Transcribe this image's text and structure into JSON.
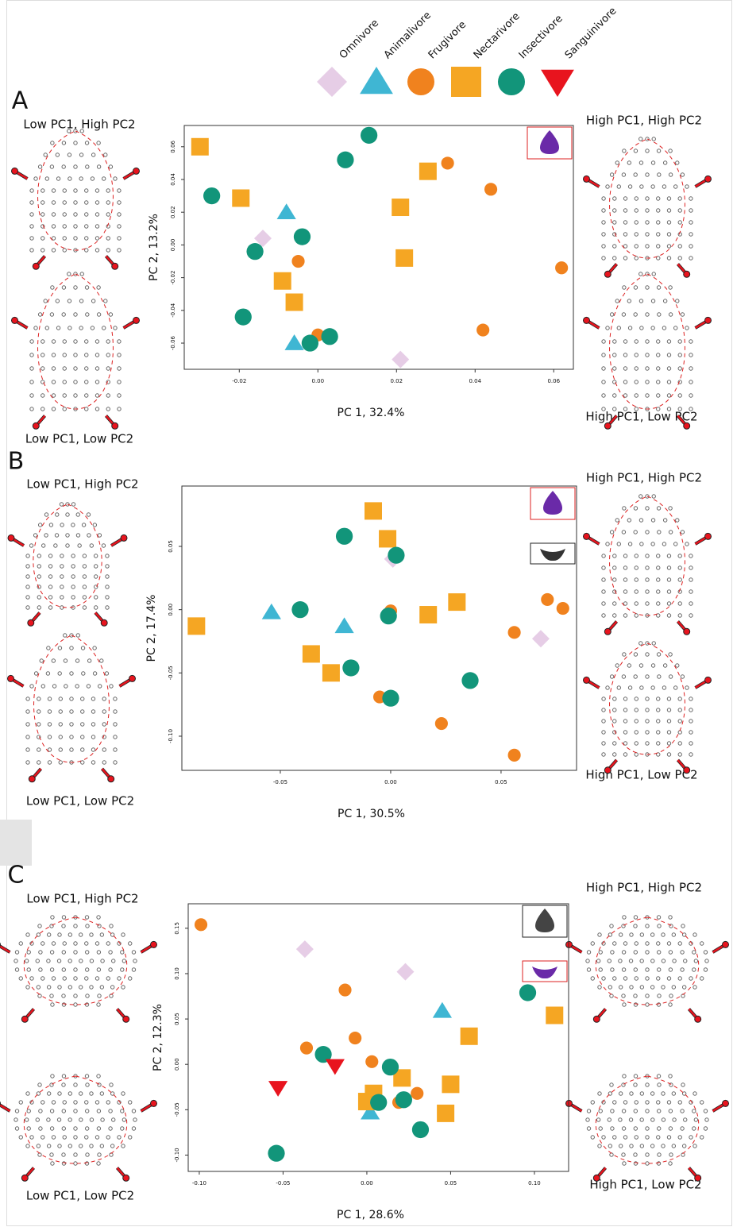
{
  "chart_data": [
    {
      "type": "scatter",
      "panel": "A",
      "xlabel": "PC 1, 32.4%",
      "ylabel": "PC 2, 13.2%",
      "annotations": [
        "Low PC1, High PC2",
        "Low PC1, Low PC2",
        "High PC1, High PC2",
        "High PC1, Low PC2"
      ],
      "xlim": [
        -0.034,
        0.065
      ],
      "ylim": [
        -0.076,
        0.073
      ],
      "xticks": [
        -0.02,
        {
          "value": 0,
          "label": "0.00"
        },
        0.02,
        0.04,
        0.06
      ],
      "yticks": [
        -0.06,
        -0.04,
        -0.02,
        {
          "value": 0,
          "label": "0.00"
        },
        0.02,
        0.04,
        0.06
      ],
      "series": [
        {
          "name": "Omnivore",
          "color": "#e6cde6",
          "marker": "diamond",
          "x": [
            -0.014,
            0.021
          ],
          "values": [
            0.004,
            -0.07
          ]
        },
        {
          "name": "Animalivore",
          "color": "#3fb6d3",
          "marker": "triangle",
          "x": [
            -0.008,
            -0.006
          ],
          "values": [
            0.02,
            -0.06
          ]
        },
        {
          "name": "Frugivore",
          "color": "#f0821e",
          "marker": "circle",
          "x": [
            0.033,
            0.044,
            -0.005,
            0.062,
            0.042,
            0.0
          ],
          "values": [
            0.05,
            0.034,
            -0.01,
            -0.014,
            -0.052,
            -0.055
          ]
        },
        {
          "name": "Nectarivore",
          "color": "#f5a623",
          "marker": "square",
          "x": [
            -0.03,
            -0.0196,
            0.028,
            0.021,
            0.022,
            -0.009,
            -0.006
          ],
          "values": [
            0.06,
            0.0286,
            0.045,
            0.023,
            -0.008,
            -0.022,
            -0.035
          ]
        },
        {
          "name": "Insectivore",
          "color": "#12957a",
          "marker": "circle",
          "x": [
            0.013,
            0.007,
            -0.027,
            -0.004,
            -0.016,
            -0.019,
            0.003,
            -0.002
          ],
          "values": [
            0.067,
            0.052,
            0.03,
            0.005,
            -0.004,
            -0.044,
            -0.056,
            -0.06
          ]
        }
      ]
    },
    {
      "type": "scatter",
      "panel": "B",
      "xlabel": "PC 1, 30.5%",
      "ylabel": "PC 2, 17.4%",
      "annotations": [
        "Low PC1, High PC2",
        "Low PC1, Low PC2",
        "High PC1, High PC2",
        "High PC1, Low PC2"
      ],
      "xlim": [
        -0.0946,
        0.0842
      ],
      "ylim": [
        -0.127,
        0.0977
      ],
      "xticks": [
        -0.05,
        {
          "value": 0,
          "label": "0.00"
        },
        0.05
      ],
      "yticks": [
        {
          "value": -0.1,
          "label": "-0.10"
        },
        -0.05,
        {
          "value": 0,
          "label": "0.00"
        },
        0.05
      ],
      "series": [
        {
          "name": "Omnivore",
          "color": "#e6cde6",
          "marker": "diamond",
          "x": [
            0.001,
            0.068
          ],
          "values": [
            0.04,
            -0.023
          ]
        },
        {
          "name": "Animalivore",
          "color": "#3fb6d3",
          "marker": "triangle",
          "x": [
            -0.054,
            -0.021
          ],
          "values": [
            -0.002,
            -0.013
          ]
        },
        {
          "name": "Frugivore",
          "color": "#f0821e",
          "marker": "circle",
          "x": [
            0.0,
            0.056,
            0.071,
            0.078,
            -0.005,
            0.023,
            0.056
          ],
          "values": [
            -0.001,
            -0.018,
            0.008,
            0.001,
            -0.069,
            -0.09,
            -0.115
          ]
        },
        {
          "name": "Nectarivore",
          "color": "#f5a623",
          "marker": "square",
          "x": [
            -0.0079,
            -0.0014,
            -0.088,
            -0.036,
            -0.027,
            0.017,
            0.03
          ],
          "values": [
            0.078,
            0.056,
            -0.013,
            -0.035,
            -0.05,
            -0.004,
            0.006
          ]
        },
        {
          "name": "Insectivore",
          "color": "#12957a",
          "marker": "circle",
          "x": [
            -0.021,
            0.0025,
            -0.041,
            -0.001,
            -0.018,
            0.036,
            0.0
          ],
          "values": [
            0.058,
            0.043,
            0.0,
            -0.005,
            -0.046,
            -0.056,
            -0.07
          ]
        }
      ]
    },
    {
      "type": "scatter",
      "panel": "C",
      "xlabel": "PC 1, 28.6%",
      "ylabel": "PC 2, 12.3%",
      "annotations": [
        "Low PC1, High PC2",
        "Low PC1, Low PC2",
        "High PC1, High PC2",
        "High PC1, Low PC2"
      ],
      "xlim": [
        -0.1066,
        0.1204
      ],
      "ylim": [
        -0.118,
        0.177
      ],
      "xticks": [
        {
          "value": -0.1,
          "label": "-0.10"
        },
        -0.05,
        {
          "value": 0,
          "label": "0.00"
        },
        0.05,
        {
          "value": 0.1,
          "label": "0.10"
        }
      ],
      "yticks": [
        {
          "value": -0.1,
          "label": "-0.10"
        },
        -0.05,
        {
          "value": 0,
          "label": "0.00"
        },
        0.05,
        {
          "value": 0.1,
          "label": "0.10"
        },
        0.15
      ],
      "series": [
        {
          "name": "Omnivore",
          "color": "#e6cde6",
          "marker": "diamond",
          "x": [
            -0.037,
            0.023
          ],
          "values": [
            0.127,
            0.102
          ]
        },
        {
          "name": "Animalivore",
          "color": "#3fb6d3",
          "marker": "triangle",
          "x": [
            0.045,
            0.002
          ],
          "values": [
            0.059,
            -0.053
          ]
        },
        {
          "name": "Frugivore",
          "color": "#f0821e",
          "marker": "circle",
          "x": [
            -0.099,
            -0.013,
            -0.007,
            -0.036,
            0.003,
            0.019,
            0.03
          ],
          "values": [
            0.154,
            0.082,
            0.029,
            0.018,
            0.003,
            -0.042,
            -0.032
          ]
        },
        {
          "name": "Nectarivore",
          "color": "#f5a623",
          "marker": "square",
          "x": [
            0.112,
            0.061,
            0.021,
            0.05,
            0.004,
            0.0,
            0.047
          ],
          "values": [
            0.054,
            0.031,
            -0.015,
            -0.022,
            -0.032,
            -0.041,
            -0.054
          ]
        },
        {
          "name": "Insectivore",
          "color": "#12957a",
          "marker": "circle",
          "x": [
            0.096,
            -0.026,
            0.014,
            0.007,
            0.022,
            0.032,
            -0.054
          ],
          "values": [
            0.079,
            0.011,
            -0.003,
            -0.042,
            -0.039,
            -0.072,
            -0.098
          ]
        },
        {
          "name": "Sanguinivore",
          "color": "#e8141e",
          "marker": "triangle-down",
          "x": [
            -0.019,
            -0.053
          ],
          "values": [
            -0.002,
            -0.026
          ]
        }
      ]
    }
  ]
}
